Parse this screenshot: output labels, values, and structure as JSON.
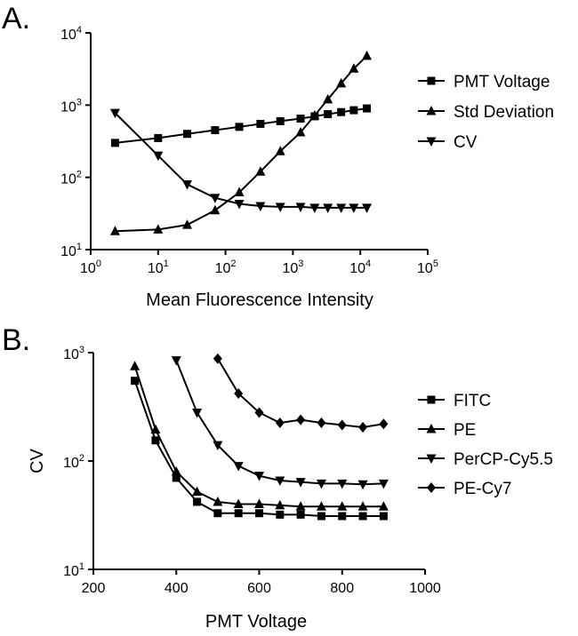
{
  "chart_data": [
    {
      "panel_label": "A.",
      "type": "line",
      "xlabel": "Mean Fluorescence Intensity",
      "ylabel": "",
      "xscale": "log",
      "yscale": "log",
      "xlim": [
        1,
        100000
      ],
      "ylim": [
        10,
        10000
      ],
      "x_tick_labels": [
        {
          "base": "10",
          "exp": "0"
        },
        {
          "base": "10",
          "exp": "1"
        },
        {
          "base": "10",
          "exp": "2"
        },
        {
          "base": "10",
          "exp": "3"
        },
        {
          "base": "10",
          "exp": "4"
        },
        {
          "base": "10",
          "exp": "5"
        }
      ],
      "y_tick_labels": [
        {
          "base": "10",
          "exp": "1"
        },
        {
          "base": "10",
          "exp": "2"
        },
        {
          "base": "10",
          "exp": "3"
        },
        {
          "base": "10",
          "exp": "4"
        }
      ],
      "legend_position": "right",
      "series": [
        {
          "name": "PMT Voltage",
          "marker": "square",
          "x": [
            2.3,
            10,
            27,
            70,
            160,
            330,
            650,
            1300,
            2100,
            3300,
            5200,
            8000,
            12500
          ],
          "y": [
            300,
            350,
            400,
            450,
            500,
            550,
            600,
            650,
            700,
            750,
            800,
            850,
            900
          ]
        },
        {
          "name": "Std Deviation",
          "marker": "triangle-up",
          "x": [
            2.3,
            10,
            27,
            70,
            160,
            330,
            650,
            1300,
            2100,
            3300,
            5200,
            8000,
            12500
          ],
          "y": [
            18,
            19,
            22,
            35,
            62,
            120,
            230,
            420,
            720,
            1200,
            2000,
            3200,
            4800
          ]
        },
        {
          "name": "CV",
          "marker": "triangle-down",
          "x": [
            2.3,
            10,
            27,
            70,
            160,
            330,
            650,
            1300,
            2100,
            3300,
            5200,
            8000,
            12500
          ],
          "y": [
            780,
            200,
            80,
            52,
            43,
            40,
            39,
            39,
            38,
            38,
            38,
            38,
            38
          ]
        }
      ]
    },
    {
      "panel_label": "B.",
      "type": "line",
      "xlabel": "PMT Voltage",
      "ylabel": "CV",
      "xscale": "linear",
      "yscale": "log",
      "xlim": [
        200,
        1000
      ],
      "ylim": [
        10,
        1000
      ],
      "x_ticks": [
        "200",
        "400",
        "600",
        "800",
        "1000"
      ],
      "y_tick_labels": [
        {
          "base": "10",
          "exp": "1"
        },
        {
          "base": "10",
          "exp": "2"
        },
        {
          "base": "10",
          "exp": "3"
        }
      ],
      "legend_position": "right",
      "series": [
        {
          "name": "FITC",
          "marker": "square",
          "x": [
            300,
            350,
            400,
            450,
            500,
            550,
            600,
            650,
            700,
            750,
            800,
            850,
            900
          ],
          "y": [
            550,
            155,
            70,
            42,
            33,
            33,
            33,
            32,
            32,
            31,
            31,
            31,
            31
          ]
        },
        {
          "name": "PE",
          "marker": "triangle-up",
          "x": [
            300,
            350,
            400,
            450,
            500,
            550,
            600,
            650,
            700,
            750,
            800,
            850,
            900
          ],
          "y": [
            750,
            195,
            80,
            52,
            42,
            40,
            40,
            39,
            38,
            38,
            38,
            38,
            38
          ]
        },
        {
          "name": "PerCP-Cy5.5",
          "marker": "triangle-down",
          "x": [
            400,
            450,
            500,
            550,
            600,
            650,
            700,
            750,
            800,
            850,
            900
          ],
          "y": [
            850,
            280,
            140,
            90,
            73,
            66,
            64,
            62,
            62,
            61,
            62
          ]
        },
        {
          "name": "PE-Cy7",
          "marker": "diamond",
          "x": [
            500,
            550,
            600,
            650,
            700,
            750,
            800,
            850,
            900
          ],
          "y": [
            880,
            420,
            280,
            225,
            240,
            225,
            215,
            205,
            220
          ]
        }
      ]
    }
  ]
}
